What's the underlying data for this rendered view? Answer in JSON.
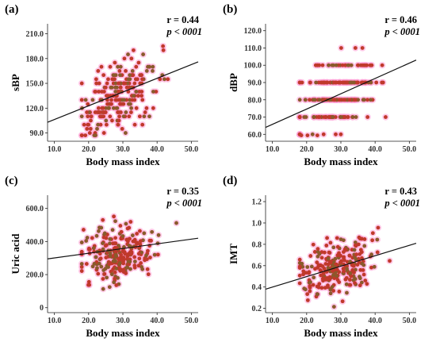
{
  "chart_data": [
    {
      "panel": "(a)",
      "type": "scatter",
      "xlabel": "Body mass index",
      "ylabel": "sBP",
      "xticks": [
        "10.0",
        "20.0",
        "30.0",
        "40.0",
        "50.0"
      ],
      "yticks": [
        "90.0",
        "120.0",
        "150.0",
        "180.0",
        "210.0"
      ],
      "xlim": [
        8,
        52
      ],
      "ylim": [
        80,
        222
      ],
      "xtickvals": [
        10,
        20,
        30,
        40,
        50
      ],
      "ytickvals": [
        90,
        120,
        150,
        180,
        210
      ],
      "r": "r = 0.44",
      "p": "p < 0001",
      "trend": {
        "x1": 8,
        "y1": 103,
        "x2": 52,
        "y2": 176
      },
      "series": [
        {
          "cloud": {
            "cx": 29,
            "cy": 135,
            "sx": 5.5,
            "sy": 20,
            "n": 230,
            "yround": 5,
            "seed": 11
          }
        }
      ]
    },
    {
      "panel": "(b)",
      "type": "scatter",
      "xlabel": "Body mass index",
      "ylabel": "dBP",
      "xticks": [
        "10.0",
        "20.0",
        "30.0",
        "40.0",
        "50.0"
      ],
      "yticks": [
        "60.0",
        "70.0",
        "80.0",
        "90.0",
        "100.0",
        "110.0",
        "120.0"
      ],
      "xlim": [
        8,
        52
      ],
      "ylim": [
        56,
        124
      ],
      "xtickvals": [
        10,
        20,
        30,
        40,
        50
      ],
      "ytickvals": [
        60,
        70,
        80,
        90,
        100,
        110,
        120
      ],
      "r": "r = 0.46",
      "p": "p < 0001",
      "trend": {
        "x1": 8,
        "y1": 64,
        "x2": 52,
        "y2": 103
      },
      "series": [
        {
          "cloud": {
            "cx": 29,
            "cy": 82,
            "sx": 5.5,
            "sy": 10,
            "n": 230,
            "yround": 10,
            "seed": 23
          }
        }
      ]
    },
    {
      "panel": "(c)",
      "type": "scatter",
      "xlabel": "Body mass index",
      "ylabel": "Uric acid",
      "xticks": [
        "10.0",
        "20.0",
        "30.0",
        "40.0",
        "50.0"
      ],
      "yticks": [
        "0",
        "200.0",
        "400.0",
        "600.0"
      ],
      "xlim": [
        8,
        52
      ],
      "ylim": [
        -30,
        680
      ],
      "xtickvals": [
        10,
        20,
        30,
        40,
        50
      ],
      "ytickvals": [
        0,
        200,
        400,
        600
      ],
      "r": "r = 0.35",
      "p": "p < 0001",
      "trend": {
        "x1": 8,
        "y1": 295,
        "x2": 52,
        "y2": 420
      },
      "series": [
        {
          "cloud": {
            "cx": 29,
            "cy": 320,
            "sx": 5.5,
            "sy": 85,
            "n": 250,
            "yround": 0,
            "seed": 37
          }
        }
      ]
    },
    {
      "panel": "(d)",
      "type": "scatter",
      "xlabel": "Body mass index",
      "ylabel": "IMT",
      "xticks": [
        "10.0",
        "20.0",
        "30.0",
        "40.0",
        "50.0"
      ],
      "yticks": [
        "0.2",
        "0.4",
        "0.6",
        "0.8",
        "1.0",
        "1.2"
      ],
      "xlim": [
        8,
        52
      ],
      "ylim": [
        0.16,
        1.26
      ],
      "xtickvals": [
        10,
        20,
        30,
        40,
        50
      ],
      "ytickvals": [
        0.2,
        0.4,
        0.6,
        0.8,
        1.0,
        1.2
      ],
      "r": "r = 0.43",
      "p": "p < 0001",
      "trend": {
        "x1": 8,
        "y1": 0.38,
        "x2": 52,
        "y2": 0.81
      },
      "series": [
        {
          "cloud": {
            "cx": 29,
            "cy": 0.58,
            "sx": 5.5,
            "sy": 0.13,
            "n": 250,
            "yround": 0,
            "seed": 51
          }
        }
      ]
    }
  ],
  "colors": {
    "point": "#c0392b",
    "point_alt": "#8a5a2b",
    "halo": "#ff9fd6",
    "trend": "#111111"
  }
}
